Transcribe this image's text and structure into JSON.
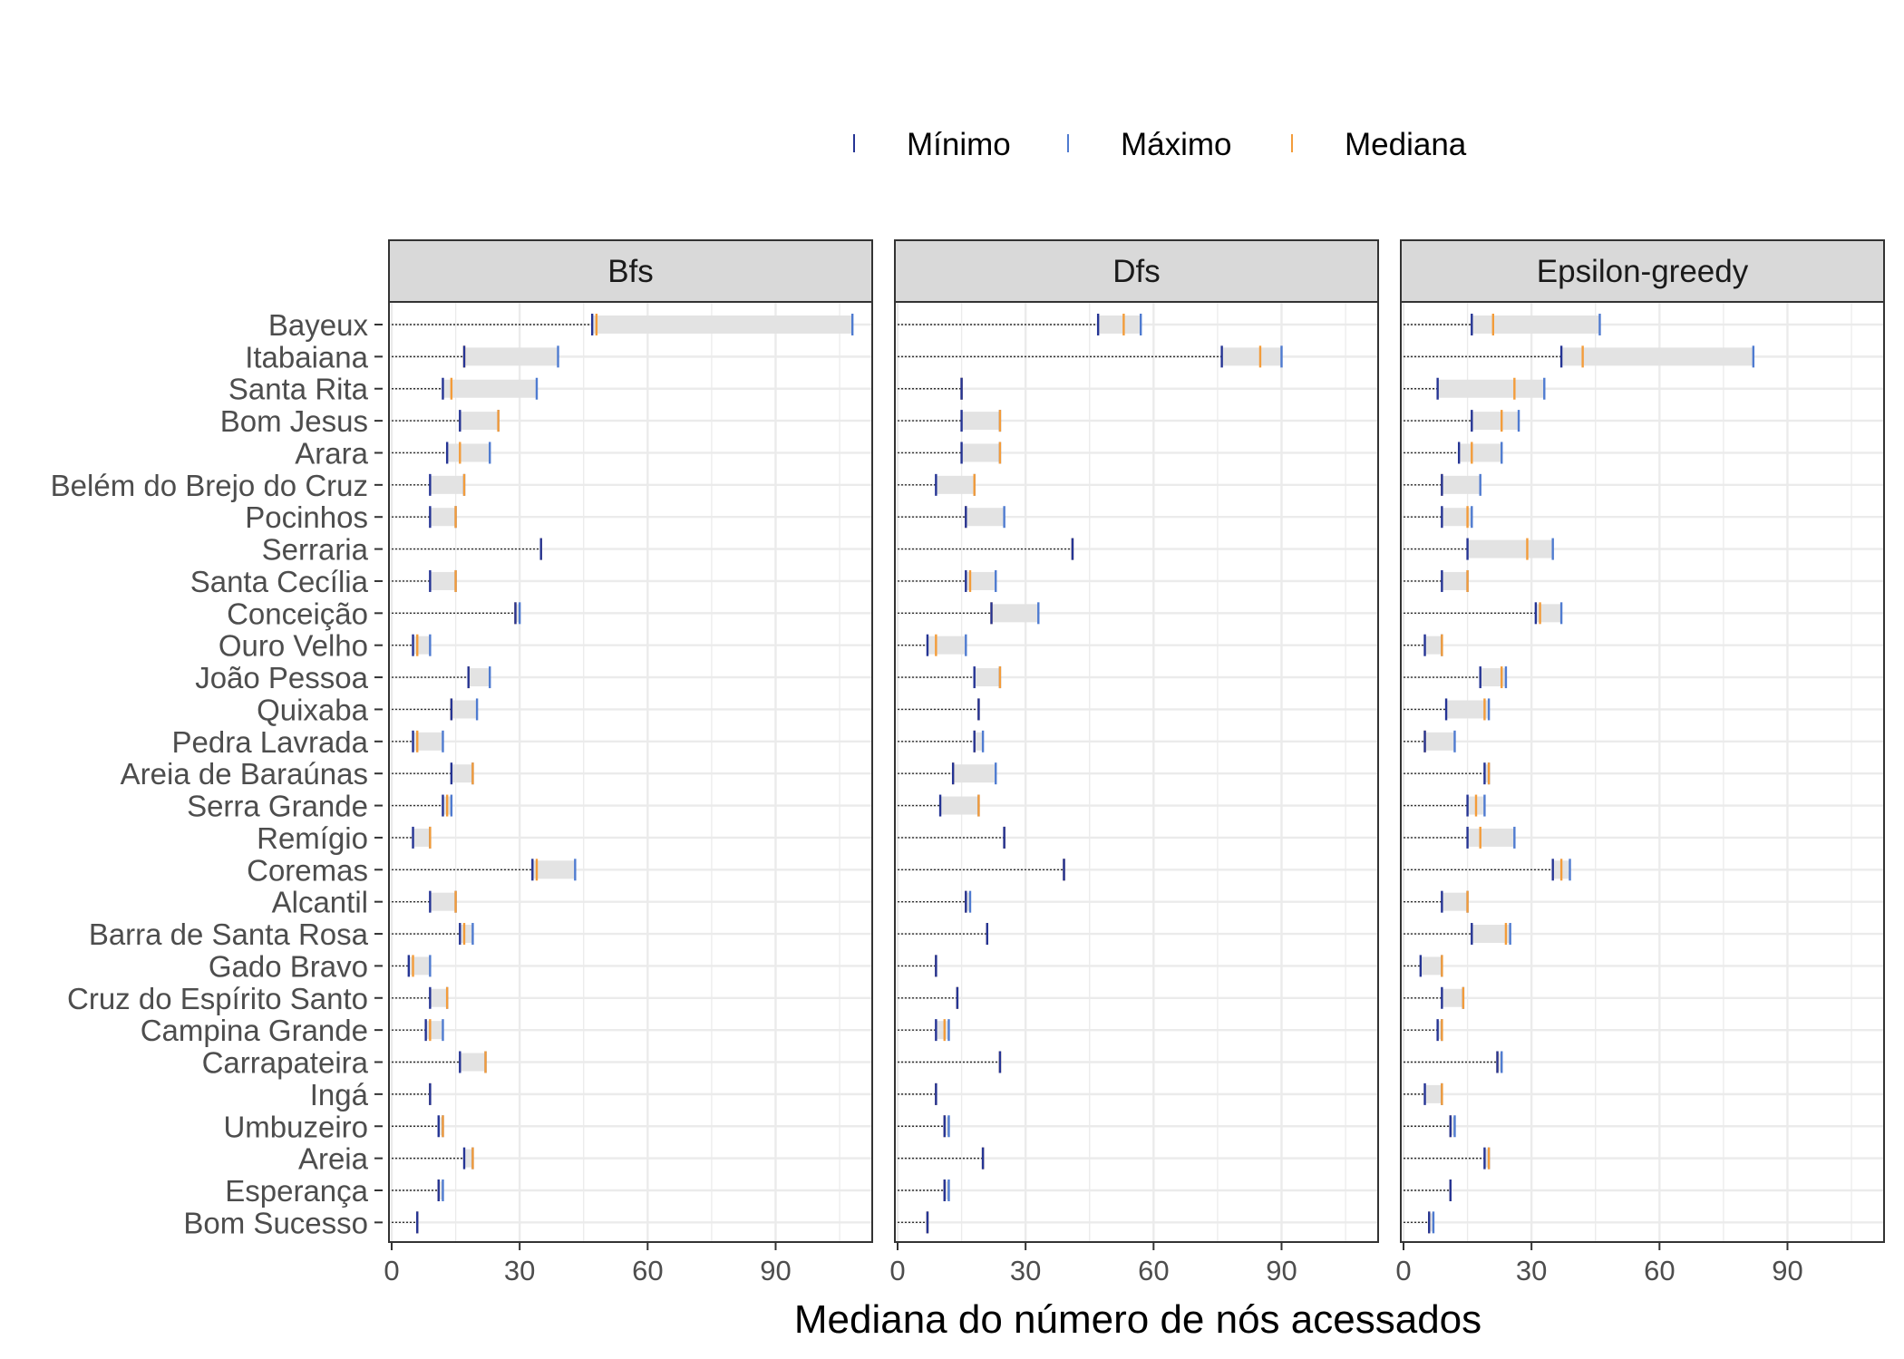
{
  "chart_data": {
    "type": "range-dot",
    "xlabel": "Mediana do número de nós acessados",
    "xlim": [
      0,
      112
    ],
    "xticks": [
      0,
      30,
      60,
      90
    ],
    "xtick_labels": [
      "0",
      "30",
      "60",
      "90"
    ],
    "legend": {
      "placement": "top",
      "entries": [
        {
          "key": "min",
          "label": "Mínimo",
          "color": "#253494"
        },
        {
          "key": "max",
          "label": "Máximo",
          "color": "#4f7bd0"
        },
        {
          "key": "median",
          "label": "Mediana",
          "color": "#f39c3a"
        }
      ]
    },
    "categories": [
      "Bayeux",
      "Itabaiana",
      "Santa Rita",
      "Bom Jesus",
      "Arara",
      "Belém do Brejo do Cruz",
      "Pocinhos",
      "Serraria",
      "Santa Cecília",
      "Conceição",
      "Ouro Velho",
      "João Pessoa",
      "Quixaba",
      "Pedra Lavrada",
      "Areia de Baraúnas",
      "Serra Grande",
      "Remígio",
      "Coremas",
      "Alcantil",
      "Barra de Santa Rosa",
      "Gado Bravo",
      "Cruz do Espírito Santo",
      "Campina Grande",
      "Carrapateira",
      "Ingá",
      "Umbuzeiro",
      "Areia",
      "Esperança",
      "Bom Sucesso"
    ],
    "panels": [
      {
        "title": "Bfs",
        "min": [
          47,
          17,
          12,
          16,
          13,
          9,
          9,
          35,
          9,
          29,
          5,
          18,
          14,
          5,
          14,
          12,
          5,
          33,
          9,
          16,
          4,
          9,
          8,
          16,
          9,
          11,
          17,
          11,
          6
        ],
        "max": [
          108,
          39,
          34,
          25,
          23,
          17,
          15,
          35,
          15,
          30,
          9,
          23,
          20,
          12,
          19,
          14,
          9,
          43,
          15,
          19,
          9,
          13,
          12,
          22,
          9,
          12,
          19,
          12,
          6
        ],
        "median": [
          48,
          17,
          14,
          25,
          16,
          17,
          15,
          35,
          15,
          29,
          6,
          18,
          14,
          6,
          19,
          13,
          9,
          34,
          15,
          17,
          5,
          13,
          9,
          22,
          9,
          12,
          19,
          11,
          6
        ]
      },
      {
        "title": "Dfs",
        "min": [
          47,
          76,
          15,
          15,
          15,
          9,
          16,
          41,
          16,
          22,
          7,
          18,
          19,
          18,
          13,
          10,
          25,
          39,
          16,
          21,
          9,
          14,
          9,
          24,
          9,
          11,
          20,
          11,
          7
        ],
        "max": [
          57,
          90,
          15,
          24,
          24,
          18,
          25,
          41,
          23,
          33,
          16,
          24,
          19,
          20,
          23,
          19,
          25,
          39,
          17,
          21,
          9,
          14,
          12,
          24,
          9,
          12,
          20,
          12,
          7
        ],
        "median": [
          53,
          85,
          15,
          24,
          24,
          18,
          16,
          41,
          17,
          22,
          9,
          24,
          19,
          18,
          13,
          19,
          25,
          39,
          16,
          21,
          9,
          14,
          11,
          24,
          9,
          11,
          20,
          11,
          7
        ]
      },
      {
        "title": "Epsilon-greedy",
        "min": [
          16,
          37,
          8,
          16,
          13,
          9,
          9,
          15,
          9,
          31,
          5,
          18,
          10,
          5,
          19,
          15,
          15,
          35,
          9,
          16,
          4,
          9,
          8,
          22,
          5,
          11,
          19,
          11,
          6
        ],
        "max": [
          46,
          82,
          33,
          27,
          23,
          18,
          16,
          35,
          15,
          37,
          9,
          24,
          20,
          12,
          20,
          19,
          26,
          39,
          15,
          25,
          9,
          14,
          9,
          23,
          9,
          12,
          20,
          11,
          7
        ],
        "median": [
          21,
          42,
          26,
          23,
          16,
          9,
          15,
          29,
          15,
          32,
          9,
          23,
          19,
          5,
          20,
          17,
          18,
          37,
          15,
          24,
          9,
          14,
          9,
          22,
          9,
          11,
          20,
          11,
          6
        ]
      }
    ]
  }
}
